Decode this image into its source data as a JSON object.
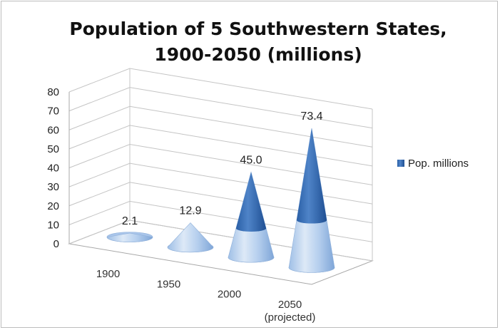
{
  "chart_data": {
    "type": "bar",
    "shape": "cone-3d",
    "title_lines": [
      "Population of 5 Southwestern States,",
      "1900-2050 (millions)"
    ],
    "categories": [
      "1900",
      "1950",
      "2000",
      "2050 (projected)"
    ],
    "category_lines": [
      [
        "1900"
      ],
      [
        "1950"
      ],
      [
        "2000"
      ],
      [
        "2050",
        "(projected)"
      ]
    ],
    "series": [
      {
        "name": "Pop. millions",
        "values": [
          2.1,
          12.9,
          45.0,
          73.4
        ],
        "labels": [
          "2.1",
          "12.9",
          "45.0",
          "73.4"
        ]
      }
    ],
    "ylim": [
      0,
      80
    ],
    "yticks": [
      0,
      10,
      20,
      30,
      40,
      50,
      60,
      70,
      80
    ],
    "grid": true,
    "legend": "right",
    "colors": {
      "dark": "#2e62a8",
      "mid": "#5a8ccc",
      "light": "#c9dcf2",
      "edge": "#8fb0da"
    }
  }
}
